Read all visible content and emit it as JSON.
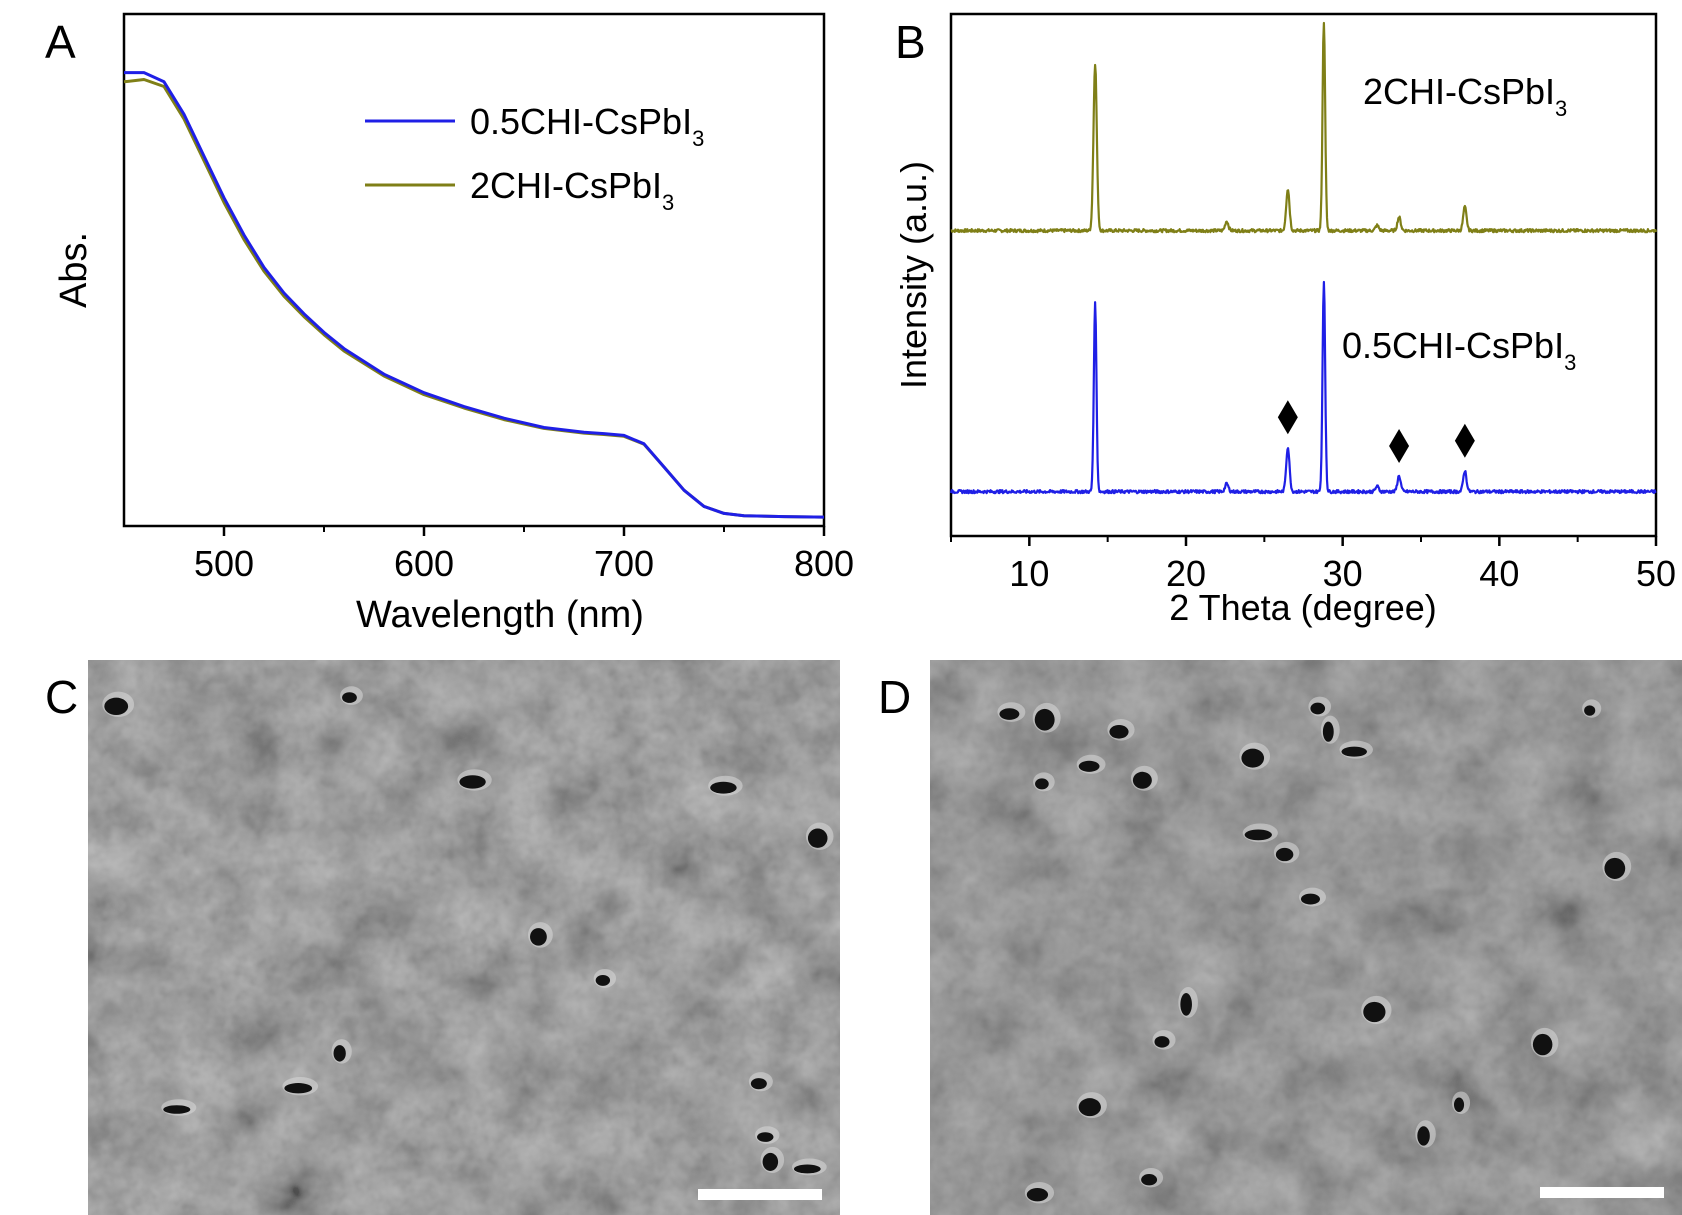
{
  "colors": {
    "series_a": "#1f1fe6",
    "series_b": "#7f7f17",
    "sem_base": "#6e6e6e",
    "scale_bar": "#ffffff"
  },
  "panels": {
    "A": {
      "label": "A"
    },
    "B": {
      "label": "B"
    },
    "C": {
      "label": "C"
    },
    "D": {
      "label": "D"
    }
  },
  "legend_a": {
    "blue_prefix": "0.5CHI-CsPbI",
    "olive_prefix": "2CHI-CsPbI",
    "subscript": "3"
  },
  "panel_b_labels": {
    "top_prefix": "2CHI-CsPbI",
    "bottom_prefix": "0.5CHI-CsPbI",
    "subscript": "3",
    "marker_glyph": "diamond-marker"
  },
  "chart_data": [
    {
      "id": "A",
      "type": "line",
      "xlabel": "Wavelength (nm)",
      "ylabel": "Abs.",
      "xlim": [
        450,
        800
      ],
      "ylim": [
        0,
        1
      ],
      "xticks": [
        500,
        600,
        700,
        800
      ],
      "y_tick_labels": false,
      "grid": false,
      "legend_position": "top-right",
      "series": [
        {
          "name": "0.5CHI-CsPbI3",
          "color": "#1f1fe6",
          "x": [
            450,
            460,
            470,
            480,
            490,
            500,
            510,
            520,
            530,
            540,
            550,
            560,
            580,
            600,
            620,
            640,
            660,
            680,
            690,
            700,
            710,
            720,
            730,
            740,
            750,
            760,
            780,
            800
          ],
          "y": [
            0.96,
            0.96,
            0.94,
            0.87,
            0.78,
            0.69,
            0.61,
            0.54,
            0.485,
            0.44,
            0.4,
            0.365,
            0.31,
            0.27,
            0.24,
            0.215,
            0.195,
            0.185,
            0.182,
            0.178,
            0.16,
            0.11,
            0.06,
            0.025,
            0.01,
            0.005,
            0.003,
            0.002
          ]
        },
        {
          "name": "2CHI-CsPbI3",
          "color": "#7f7f17",
          "x": [
            450,
            460,
            470,
            480,
            490,
            500,
            510,
            520,
            530,
            540,
            550,
            560,
            580,
            600,
            620,
            640,
            660,
            680,
            690,
            700,
            710,
            720,
            730,
            740,
            750,
            760,
            780,
            800
          ],
          "y": [
            0.94,
            0.945,
            0.93,
            0.86,
            0.77,
            0.68,
            0.6,
            0.532,
            0.478,
            0.434,
            0.395,
            0.36,
            0.306,
            0.266,
            0.237,
            0.212,
            0.193,
            0.183,
            0.18,
            0.176,
            0.159,
            0.11,
            0.06,
            0.025,
            0.01,
            0.005,
            0.003,
            0.002
          ]
        }
      ]
    },
    {
      "id": "B",
      "type": "line",
      "xlabel": "2 Theta (degree)",
      "ylabel": "Intensity (a.u.)",
      "xlim": [
        5,
        50
      ],
      "ylim": [
        0,
        1
      ],
      "xticks": [
        10,
        20,
        30,
        40,
        50
      ],
      "y_tick_labels": false,
      "grid": false,
      "series": [
        {
          "name": "2CHI-CsPbI3",
          "color": "#7f7f17",
          "baseline": 0.585,
          "peaks": [
            {
              "x": 14.2,
              "height": 0.32,
              "width": 0.15
            },
            {
              "x": 22.6,
              "height": 0.018,
              "width": 0.15
            },
            {
              "x": 26.5,
              "height": 0.08,
              "width": 0.15
            },
            {
              "x": 28.8,
              "height": 0.4,
              "width": 0.12
            },
            {
              "x": 32.2,
              "height": 0.01,
              "width": 0.15
            },
            {
              "x": 33.6,
              "height": 0.026,
              "width": 0.15
            },
            {
              "x": 37.8,
              "height": 0.045,
              "width": 0.15
            }
          ]
        },
        {
          "name": "0.5CHI-CsPbI3",
          "color": "#1f1fe6",
          "baseline": 0.085,
          "peaks": [
            {
              "x": 14.2,
              "height": 0.36,
              "width": 0.12
            },
            {
              "x": 22.6,
              "height": 0.015,
              "width": 0.15
            },
            {
              "x": 26.5,
              "height": 0.085,
              "width": 0.15
            },
            {
              "x": 28.8,
              "height": 0.4,
              "width": 0.12
            },
            {
              "x": 32.2,
              "height": 0.01,
              "width": 0.15
            },
            {
              "x": 33.6,
              "height": 0.03,
              "width": 0.15
            },
            {
              "x": 37.8,
              "height": 0.04,
              "width": 0.15
            }
          ]
        }
      ],
      "markers_x": [
        26.5,
        33.6,
        37.8
      ]
    }
  ]
}
